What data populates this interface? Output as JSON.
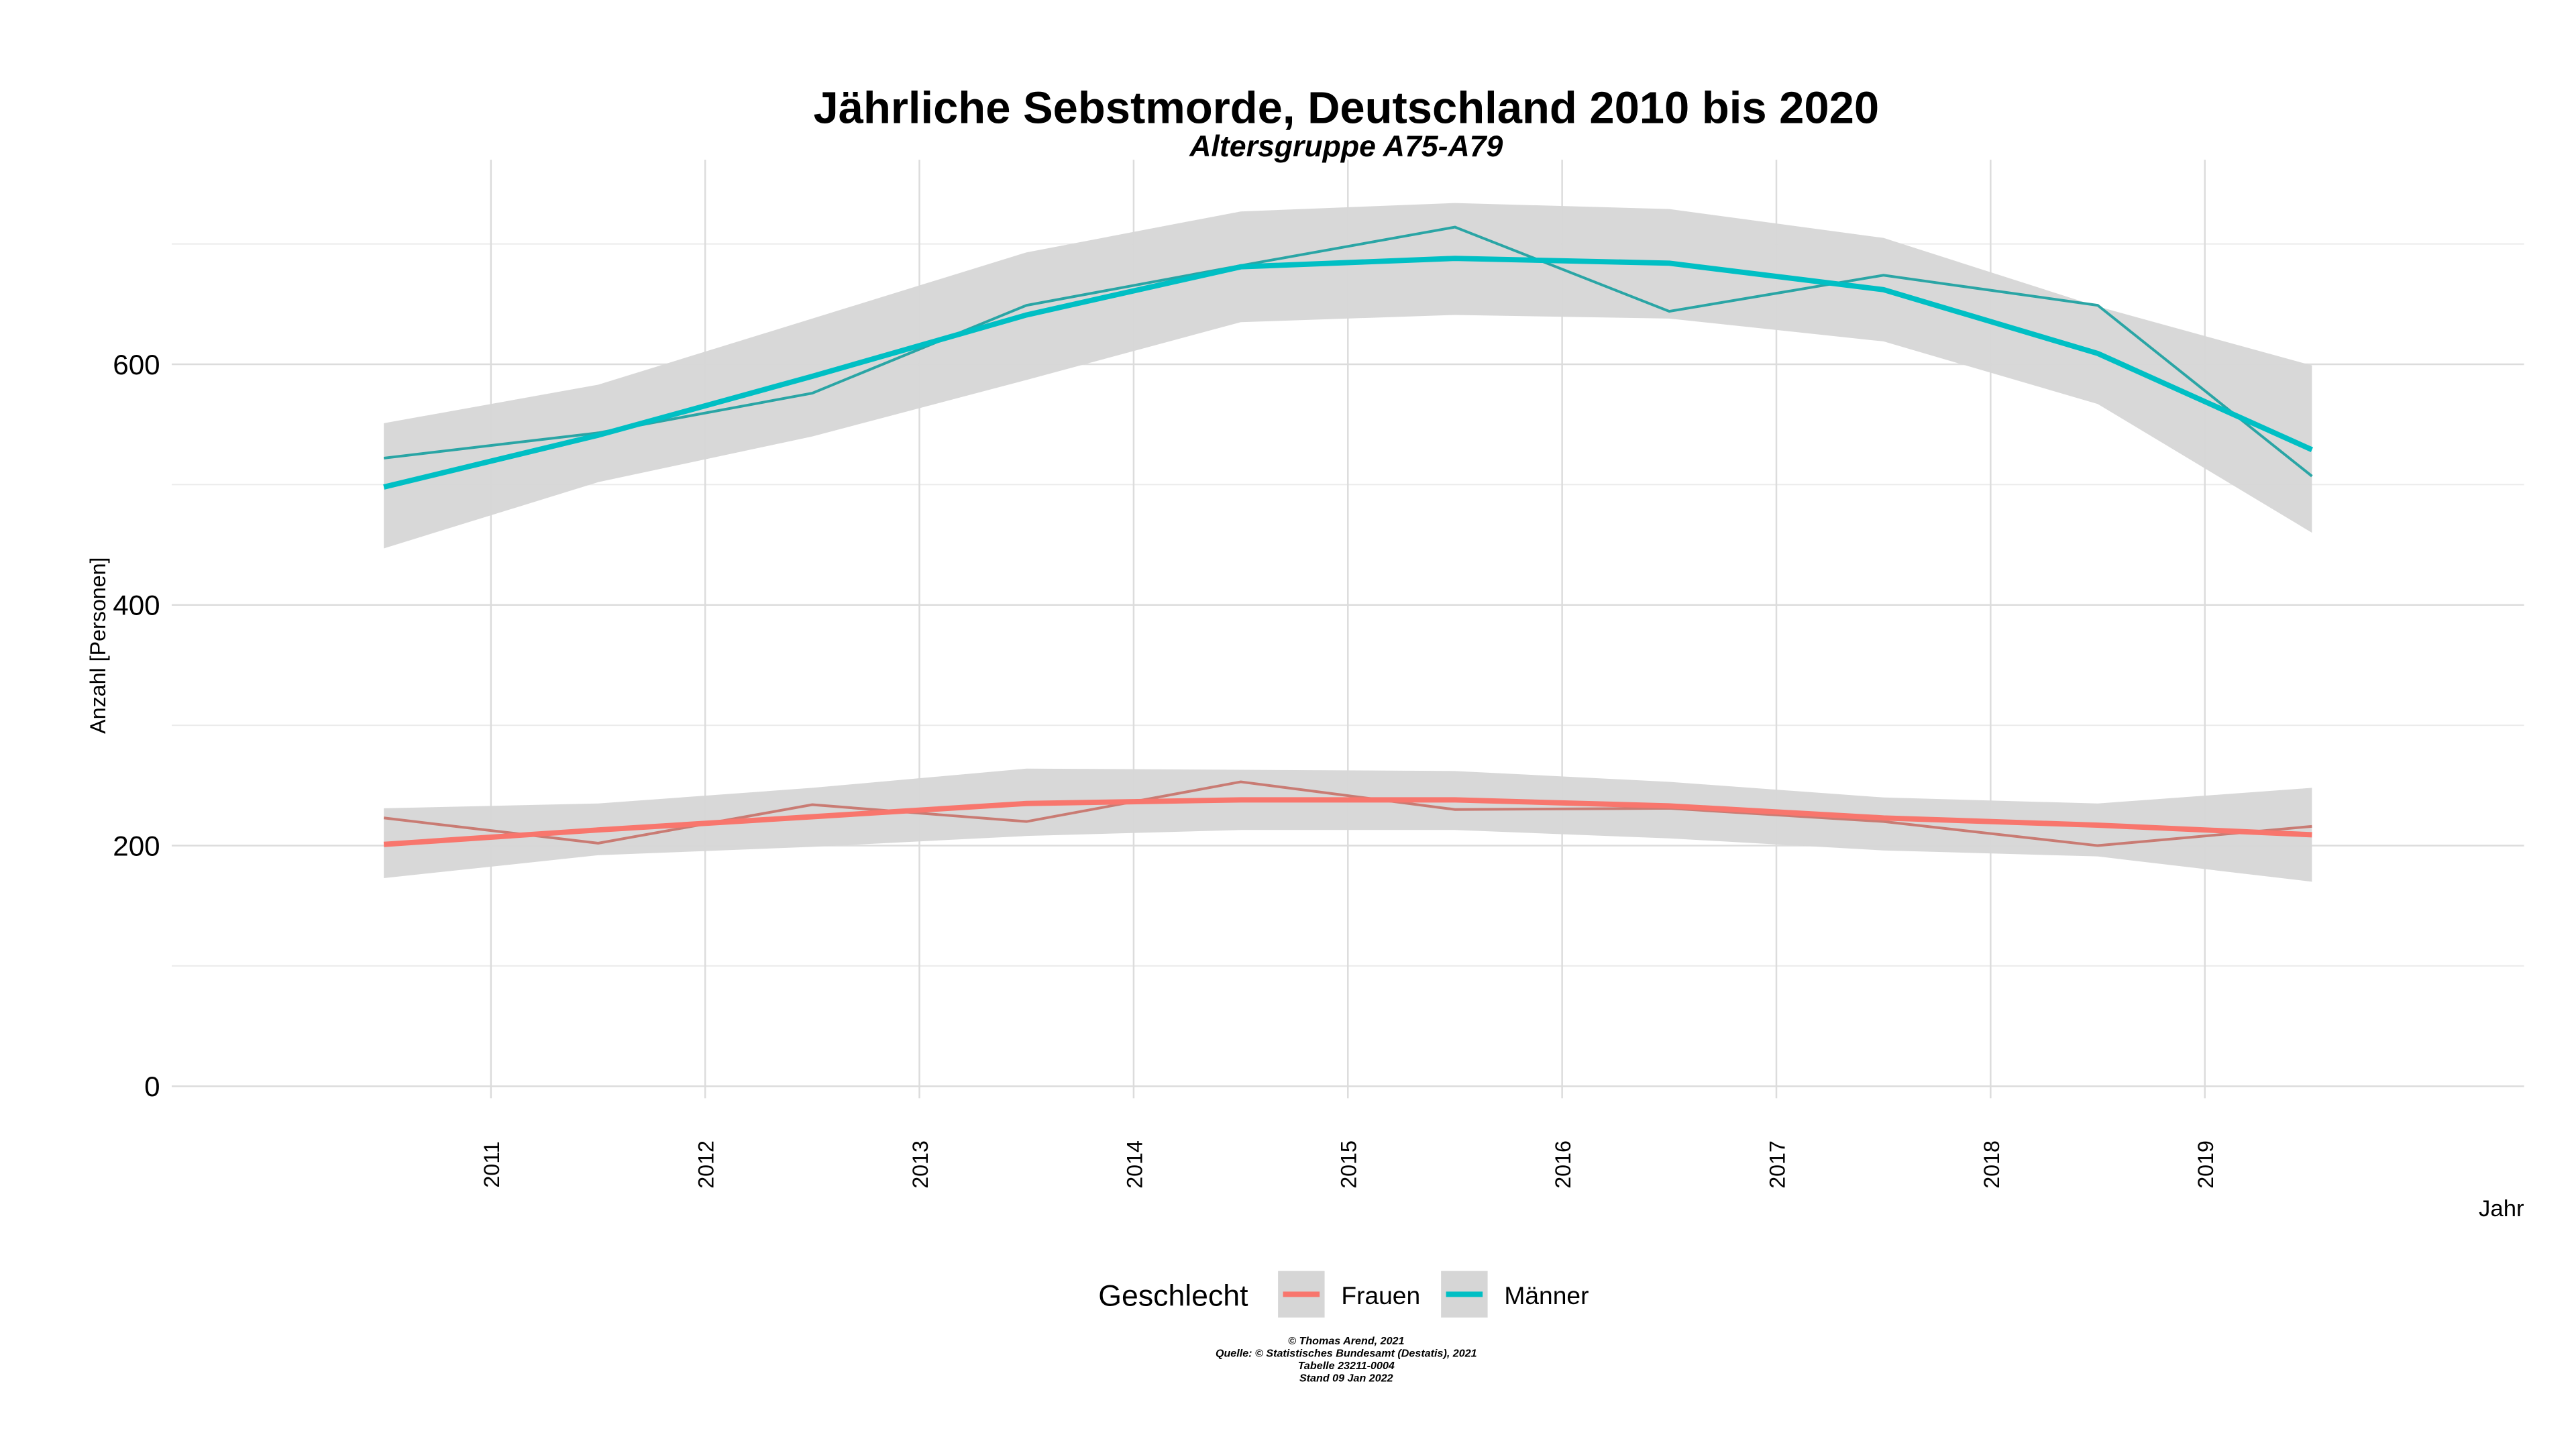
{
  "chart_data": {
    "type": "line",
    "title": "Jährliche Sebstmorde, Deutschland 2010 bis 2020",
    "subtitle": "Altersgruppe A75-A79",
    "x_label": "Jahr",
    "y_label": "Anzahl [Personen]",
    "legend_title": "Geschlecht",
    "legend_position": "bottom",
    "caption": [
      "© Thomas Arend, 2021",
      "Quelle: © Statistisches Bundesamt (Destatis), 2021",
      "Tabelle 23211-0004",
      "Stand 09 Jan 2022"
    ],
    "x": [
      2010.5,
      2011.5,
      2012.5,
      2013.5,
      2014.5,
      2015.5,
      2016.5,
      2017.5,
      2018.5,
      2019.5
    ],
    "xlim": [
      2009.51,
      2020.49
    ],
    "xticks": [
      2011,
      2012,
      2013,
      2014,
      2015,
      2016,
      2017,
      2018,
      2019
    ],
    "ylim": [
      -10,
      770
    ],
    "yticks": [
      0,
      200,
      400,
      600
    ],
    "minor_yticks": [
      100,
      300,
      500,
      700
    ],
    "grid": true,
    "band_color": "#d6d6d6",
    "series": [
      {
        "name": "Frauen",
        "color": "#F8766D",
        "raw_color": "#c97b73",
        "values": [
          201,
          213,
          224,
          235,
          238,
          238,
          233,
          223,
          217,
          209
        ],
        "raw_values": [
          223,
          202,
          234,
          220,
          253,
          230,
          231,
          220,
          200,
          216
        ],
        "lower": [
          173,
          192,
          199,
          208,
          213,
          213,
          206,
          196,
          191,
          170
        ],
        "upper": [
          231,
          235,
          248,
          264,
          263,
          262,
          253,
          240,
          235,
          248
        ]
      },
      {
        "name": "Männer",
        "color": "#00BFC4",
        "raw_color": "#2aa5a5",
        "values": [
          498,
          541,
          590,
          641,
          681,
          688,
          684,
          662,
          609,
          529
        ],
        "raw_values": [
          522,
          543,
          576,
          649,
          682,
          714,
          644,
          674,
          649,
          507
        ],
        "lower": [
          447,
          502,
          540,
          587,
          635,
          641,
          638,
          619,
          567,
          460
        ],
        "upper": [
          551,
          583,
          638,
          693,
          727,
          734,
          729,
          705,
          648,
          599
        ]
      }
    ]
  }
}
